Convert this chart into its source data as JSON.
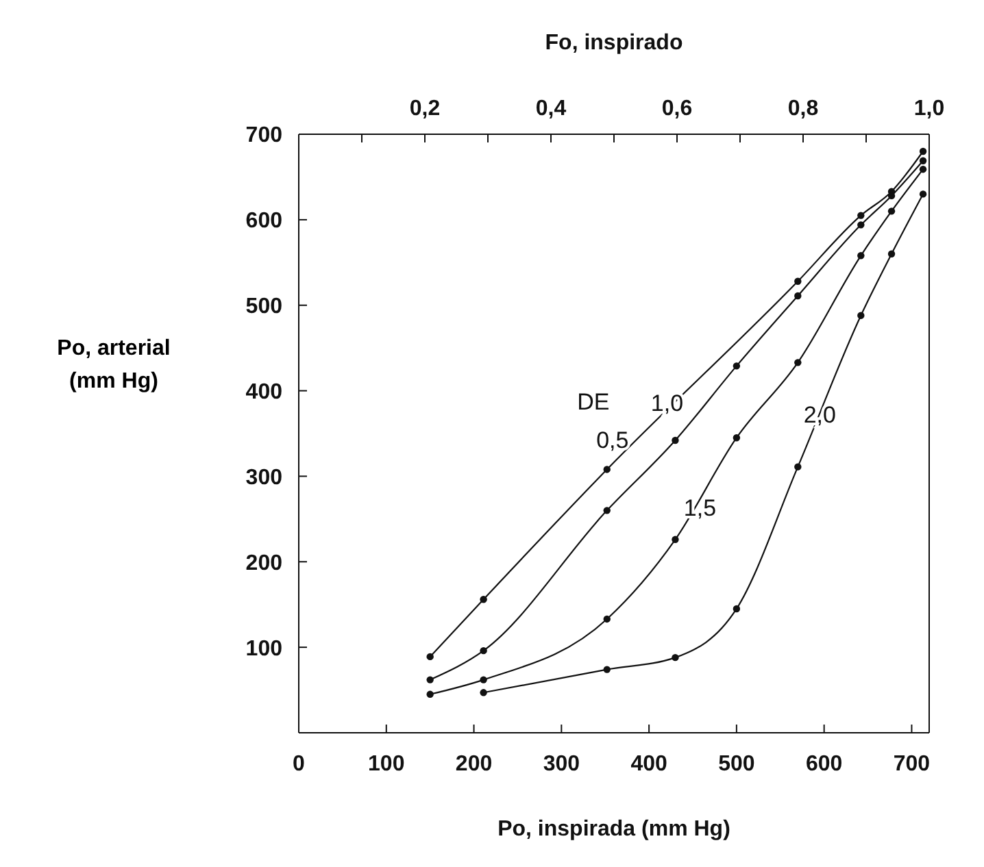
{
  "chart_data": {
    "type": "line",
    "xlabel": "Po, inspirada (mm Hg)",
    "ylabel": "Po, arterial (mm Hg)",
    "x2label": "Fo, inspirado",
    "legend_title": "DE",
    "xlim": [
      0,
      720
    ],
    "xticks": [
      0,
      100,
      200,
      300,
      400,
      500,
      600,
      700
    ],
    "x2lim": [
      0,
      1.0
    ],
    "x2ticks": [
      {
        "value": 0.1,
        "label": null
      },
      {
        "value": 0.2,
        "label": "0,2"
      },
      {
        "value": 0.3,
        "label": null
      },
      {
        "value": 0.4,
        "label": "0,4"
      },
      {
        "value": 0.5,
        "label": null
      },
      {
        "value": 0.6,
        "label": "0,6"
      },
      {
        "value": 0.7,
        "label": null
      },
      {
        "value": 0.8,
        "label": "0,8"
      },
      {
        "value": 0.9,
        "label": null
      },
      {
        "value": 1.0,
        "label": "1,0"
      }
    ],
    "ylim": [
      0,
      700
    ],
    "yticks": [
      100,
      200,
      300,
      400,
      500,
      600,
      700
    ],
    "marker": "circle",
    "line_style": "solid",
    "series": [
      {
        "name": "0,5",
        "color": "#111111",
        "x": [
          150,
          211,
          352,
          570,
          642,
          677,
          713
        ],
        "values": [
          89,
          156,
          308,
          528,
          605,
          633,
          680
        ]
      },
      {
        "name": "1,0",
        "color": "#111111",
        "x": [
          150,
          211,
          352,
          430,
          500,
          570,
          642,
          677,
          713
        ],
        "values": [
          62,
          96,
          260,
          342,
          429,
          511,
          594,
          628,
          669
        ]
      },
      {
        "name": "1,5",
        "color": "#111111",
        "x": [
          150,
          211,
          352,
          430,
          500,
          570,
          642,
          677,
          713
        ],
        "values": [
          45,
          62,
          133,
          226,
          345,
          433,
          558,
          610,
          659
        ]
      },
      {
        "name": "2,0",
        "color": "#111111",
        "x": [
          211,
          352,
          430,
          500,
          570,
          642,
          677,
          713
        ],
        "values": [
          47,
          74,
          88,
          145,
          311,
          488,
          560,
          630
        ]
      }
    ]
  }
}
